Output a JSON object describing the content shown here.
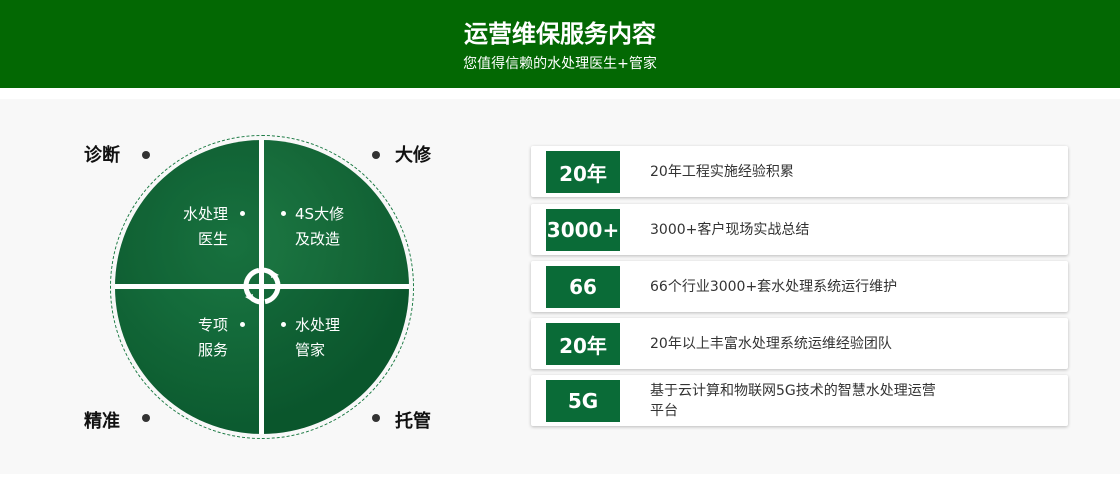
{
  "header": {
    "title": "运营维保服务内容",
    "subtitle": "您值得信赖的水处理医生+管家"
  },
  "corners": [
    "诊断",
    "大修",
    "精准",
    "托管"
  ],
  "quadrants": [
    {
      "line1": "水处理",
      "line2": "医生"
    },
    {
      "line1": "4S大修",
      "line2": "及改造"
    },
    {
      "line1": "专项",
      "line2": "服务"
    },
    {
      "line1": "水处理",
      "line2": "管家"
    }
  ],
  "items": [
    {
      "badge": "20年",
      "text": "20年工程实施经验积累"
    },
    {
      "badge": "3000+",
      "text": "3000+客户现场实战总结"
    },
    {
      "badge": "66",
      "text": "66个行业3000+套水处理系统运行维护"
    },
    {
      "badge": "20年",
      "text": "20年以上丰富水处理系统运维经验团队"
    },
    {
      "badge": "5G",
      "text": "基于云计算和物联网5G技术的智慧水处理运营平台"
    }
  ],
  "colors": {
    "header": "#036803",
    "badge": "#0a6b37"
  }
}
